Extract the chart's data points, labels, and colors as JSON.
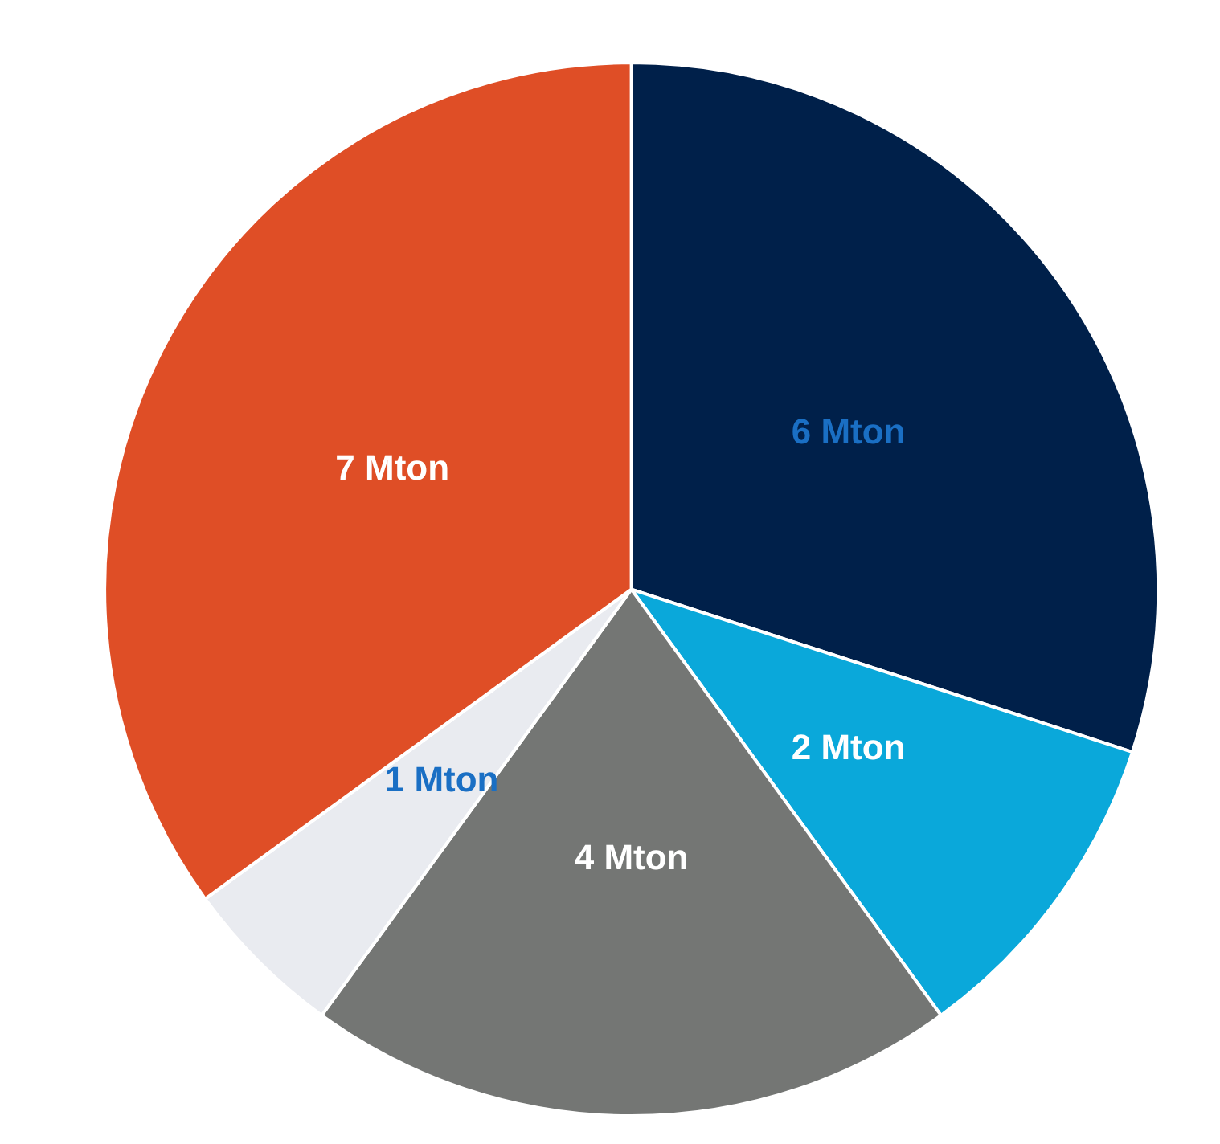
{
  "chart_data": {
    "type": "pie",
    "categories": [
      null,
      null,
      null,
      null,
      null
    ],
    "values": [
      6,
      2,
      4,
      1,
      7
    ],
    "value_labels": [
      "6 Mton",
      "2 Mton",
      "4 Mton",
      "1 Mton",
      "7 Mton"
    ],
    "colors": [
      "#00204a",
      "#0aa8da",
      "#747674",
      "#e9ebf0",
      "#df4e26"
    ]
  }
}
